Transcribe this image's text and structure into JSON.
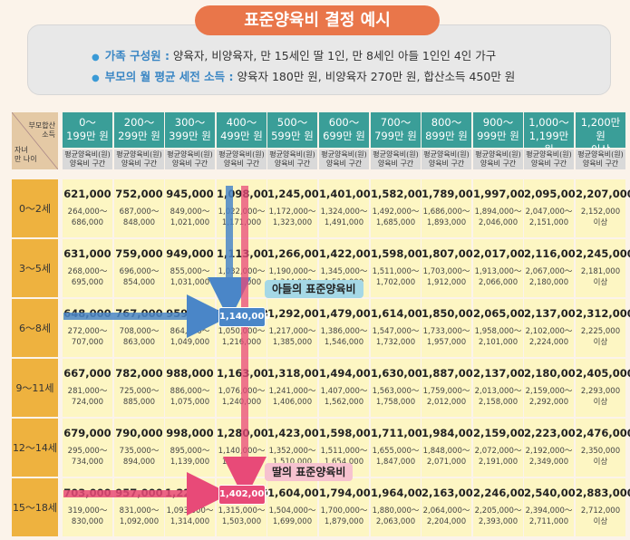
{
  "title": "표준양육비 결정 예시",
  "info": {
    "family_key": "가족 구성원 :",
    "family_value": "양육자, 비양육자, 만 15세인 딸 1인, 만 8세인 아들 1인인 4인 가구",
    "income_key": "부모의 월 평균 세전 소득 :",
    "income_value": "양육자 180만 원, 비양육자 270만 원, 합산소득 450만 원"
  },
  "corner": {
    "top": "부모합산\n소득",
    "bottom": "자녀\n만 나이"
  },
  "columns": [
    {
      "head": "0～\n199만 원",
      "sub": "평균양육비(원)\n양육비 구간"
    },
    {
      "head": "200～\n299만 원",
      "sub": "평균양육비(원)\n양육비 구간"
    },
    {
      "head": "300～\n399만 원",
      "sub": "평균양육비(원)\n양육비 구간"
    },
    {
      "head": "400～\n499만 원",
      "sub": "평균양육비(원)\n양육비 구간"
    },
    {
      "head": "500～\n599만 원",
      "sub": "평균양육비(원)\n양육비 구간"
    },
    {
      "head": "600～\n699만 원",
      "sub": "평균양육비(원)\n양육비 구간"
    },
    {
      "head": "700～\n799만 원",
      "sub": "평균양육비(원)\n양육비 구간"
    },
    {
      "head": "800～\n899만 원",
      "sub": "평균양육비(원)\n양육비 구간"
    },
    {
      "head": "900～\n999만 원",
      "sub": "평균양육비(원)\n양육비 구간"
    },
    {
      "head": "1,000～\n1,199만 원",
      "sub": "평균양육비(원)\n양육비 구간"
    },
    {
      "head": "1,200만 원\n이상",
      "sub": "평균양육비(원)\n양육비 구간"
    }
  ],
  "rows": [
    {
      "age": "0～2세",
      "cells": [
        {
          "avg": "621,000",
          "rng": "264,000～\n686,000"
        },
        {
          "avg": "752,000",
          "rng": "687,000～\n848,000"
        },
        {
          "avg": "945,000",
          "rng": "849,000～\n1,021,000"
        },
        {
          "avg": "1,098,000",
          "rng": "1,022,000～\n1,171,000"
        },
        {
          "avg": "1,245,000",
          "rng": "1,172,000～\n1,323,000"
        },
        {
          "avg": "1,401,000",
          "rng": "1,324,000～\n1,491,000"
        },
        {
          "avg": "1,582,000",
          "rng": "1,492,000～\n1,685,000"
        },
        {
          "avg": "1,789,000",
          "rng": "1,686,000～\n1,893,000"
        },
        {
          "avg": "1,997,000",
          "rng": "1,894,000～\n2,046,000"
        },
        {
          "avg": "2,095,000",
          "rng": "2,047,000～\n2,151,000"
        },
        {
          "avg": "2,207,000",
          "rng": "2,152,000\n이상"
        }
      ]
    },
    {
      "age": "3～5세",
      "cells": [
        {
          "avg": "631,000",
          "rng": "268,000～\n695,000"
        },
        {
          "avg": "759,000",
          "rng": "696,000～\n854,000"
        },
        {
          "avg": "949,000",
          "rng": "855,000～\n1,031,000"
        },
        {
          "avg": "1,113,000",
          "rng": "1,032,000～\n1,189,000"
        },
        {
          "avg": "1,266,000",
          "rng": "1,190,000～\n1,344,000"
        },
        {
          "avg": "1,422,000",
          "rng": "1,345,000～\n1,510,000"
        },
        {
          "avg": "1,598,000",
          "rng": "1,511,000～\n1,702,000"
        },
        {
          "avg": "1,807,000",
          "rng": "1,703,000～\n1,912,000"
        },
        {
          "avg": "2,017,000",
          "rng": "1,913,000～\n2,066,000"
        },
        {
          "avg": "2,116,000",
          "rng": "2,067,000～\n2,180,000"
        },
        {
          "avg": "2,245,000",
          "rng": "2,181,000\n이상"
        }
      ]
    },
    {
      "age": "6～8세",
      "cells": [
        {
          "avg": "648,000",
          "rng": "272,000～\n707,000"
        },
        {
          "avg": "767,000",
          "rng": "708,000～\n863,000"
        },
        {
          "avg": "959,000",
          "rng": "864,000～\n1,049,000"
        },
        {
          "avg": "1,140,000",
          "rng": "1,050,000～\n1,216,000"
        },
        {
          "avg": "1,292,000",
          "rng": "1,217,000～\n1,385,000"
        },
        {
          "avg": "1,479,000",
          "rng": "1,386,000～\n1,546,000"
        },
        {
          "avg": "1,614,000",
          "rng": "1,547,000～\n1,732,000"
        },
        {
          "avg": "1,850,000",
          "rng": "1,733,000～\n1,957,000"
        },
        {
          "avg": "2,065,000",
          "rng": "1,958,000～\n2,101,000"
        },
        {
          "avg": "2,137,000",
          "rng": "2,102,000～\n2,224,000"
        },
        {
          "avg": "2,312,000",
          "rng": "2,225,000\n이상"
        }
      ]
    },
    {
      "age": "9～11세",
      "cells": [
        {
          "avg": "667,000",
          "rng": "281,000～\n724,000"
        },
        {
          "avg": "782,000",
          "rng": "725,000～\n885,000"
        },
        {
          "avg": "988,000",
          "rng": "886,000～\n1,075,000"
        },
        {
          "avg": "1,163,000",
          "rng": "1,076,000～\n1,240,000"
        },
        {
          "avg": "1,318,000",
          "rng": "1,241,000～\n1,406,000"
        },
        {
          "avg": "1,494,000",
          "rng": "1,407,000～\n1,562,000"
        },
        {
          "avg": "1,630,000",
          "rng": "1,563,000～\n1,758,000"
        },
        {
          "avg": "1,887,000",
          "rng": "1,759,000～\n2,012,000"
        },
        {
          "avg": "2,137,000",
          "rng": "2,013,000～\n2,158,000"
        },
        {
          "avg": "2,180,000",
          "rng": "2,159,000～\n2,292,000"
        },
        {
          "avg": "2,405,000",
          "rng": "2,293,000\n이상"
        }
      ]
    },
    {
      "age": "12～14세",
      "cells": [
        {
          "avg": "679,000",
          "rng": "295,000～\n734,000"
        },
        {
          "avg": "790,000",
          "rng": "735,000～\n894,000"
        },
        {
          "avg": "998,000",
          "rng": "895,000～\n1,139,000"
        },
        {
          "avg": "1,280,000",
          "rng": "1,140,000～\n1,351,000"
        },
        {
          "avg": "1,423,000",
          "rng": "1,352,000～\n1,510,000"
        },
        {
          "avg": "1,598,000",
          "rng": "1,511,000～\n1,654,000"
        },
        {
          "avg": "1,711,000",
          "rng": "1,655,000～\n1,847,000"
        },
        {
          "avg": "1,984,000",
          "rng": "1,848,000～\n2,071,000"
        },
        {
          "avg": "2,159,000",
          "rng": "2,072,000～\n2,191,000"
        },
        {
          "avg": "2,223,000",
          "rng": "2,192,000～\n2,349,000"
        },
        {
          "avg": "2,476,000",
          "rng": "2,350,000\n이상"
        }
      ]
    },
    {
      "age": "15～18세",
      "cells": [
        {
          "avg": "703,000",
          "rng": "319,000～\n830,000"
        },
        {
          "avg": "957,000",
          "rng": "831,000～\n1,092,000"
        },
        {
          "avg": "1,227,000",
          "rng": "1,093,000～\n1,314,000"
        },
        {
          "avg": "1,402,000",
          "rng": "1,315,000～\n1,503,000"
        },
        {
          "avg": "1,604,000",
          "rng": "1,504,000～\n1,699,000"
        },
        {
          "avg": "1,794,000",
          "rng": "1,700,000～\n1,879,000"
        },
        {
          "avg": "1,964,000",
          "rng": "1,880,000～\n2,063,000"
        },
        {
          "avg": "2,163,000",
          "rng": "2,064,000～\n2,204,000"
        },
        {
          "avg": "2,246,000",
          "rng": "2,205,000～\n2,393,000"
        },
        {
          "avg": "2,540,000",
          "rng": "2,394,000～\n2,711,000"
        },
        {
          "avg": "2,883,000",
          "rng": "2,712,000\n이상"
        }
      ]
    }
  ],
  "highlights": {
    "son_value": "1,140,000",
    "son_label": "아들의 표준양육비",
    "daughter_value": "1,402,000",
    "daughter_label": "딸의 표준양육비",
    "son_color": "#4a86c8",
    "daughter_color": "#e84a78"
  }
}
